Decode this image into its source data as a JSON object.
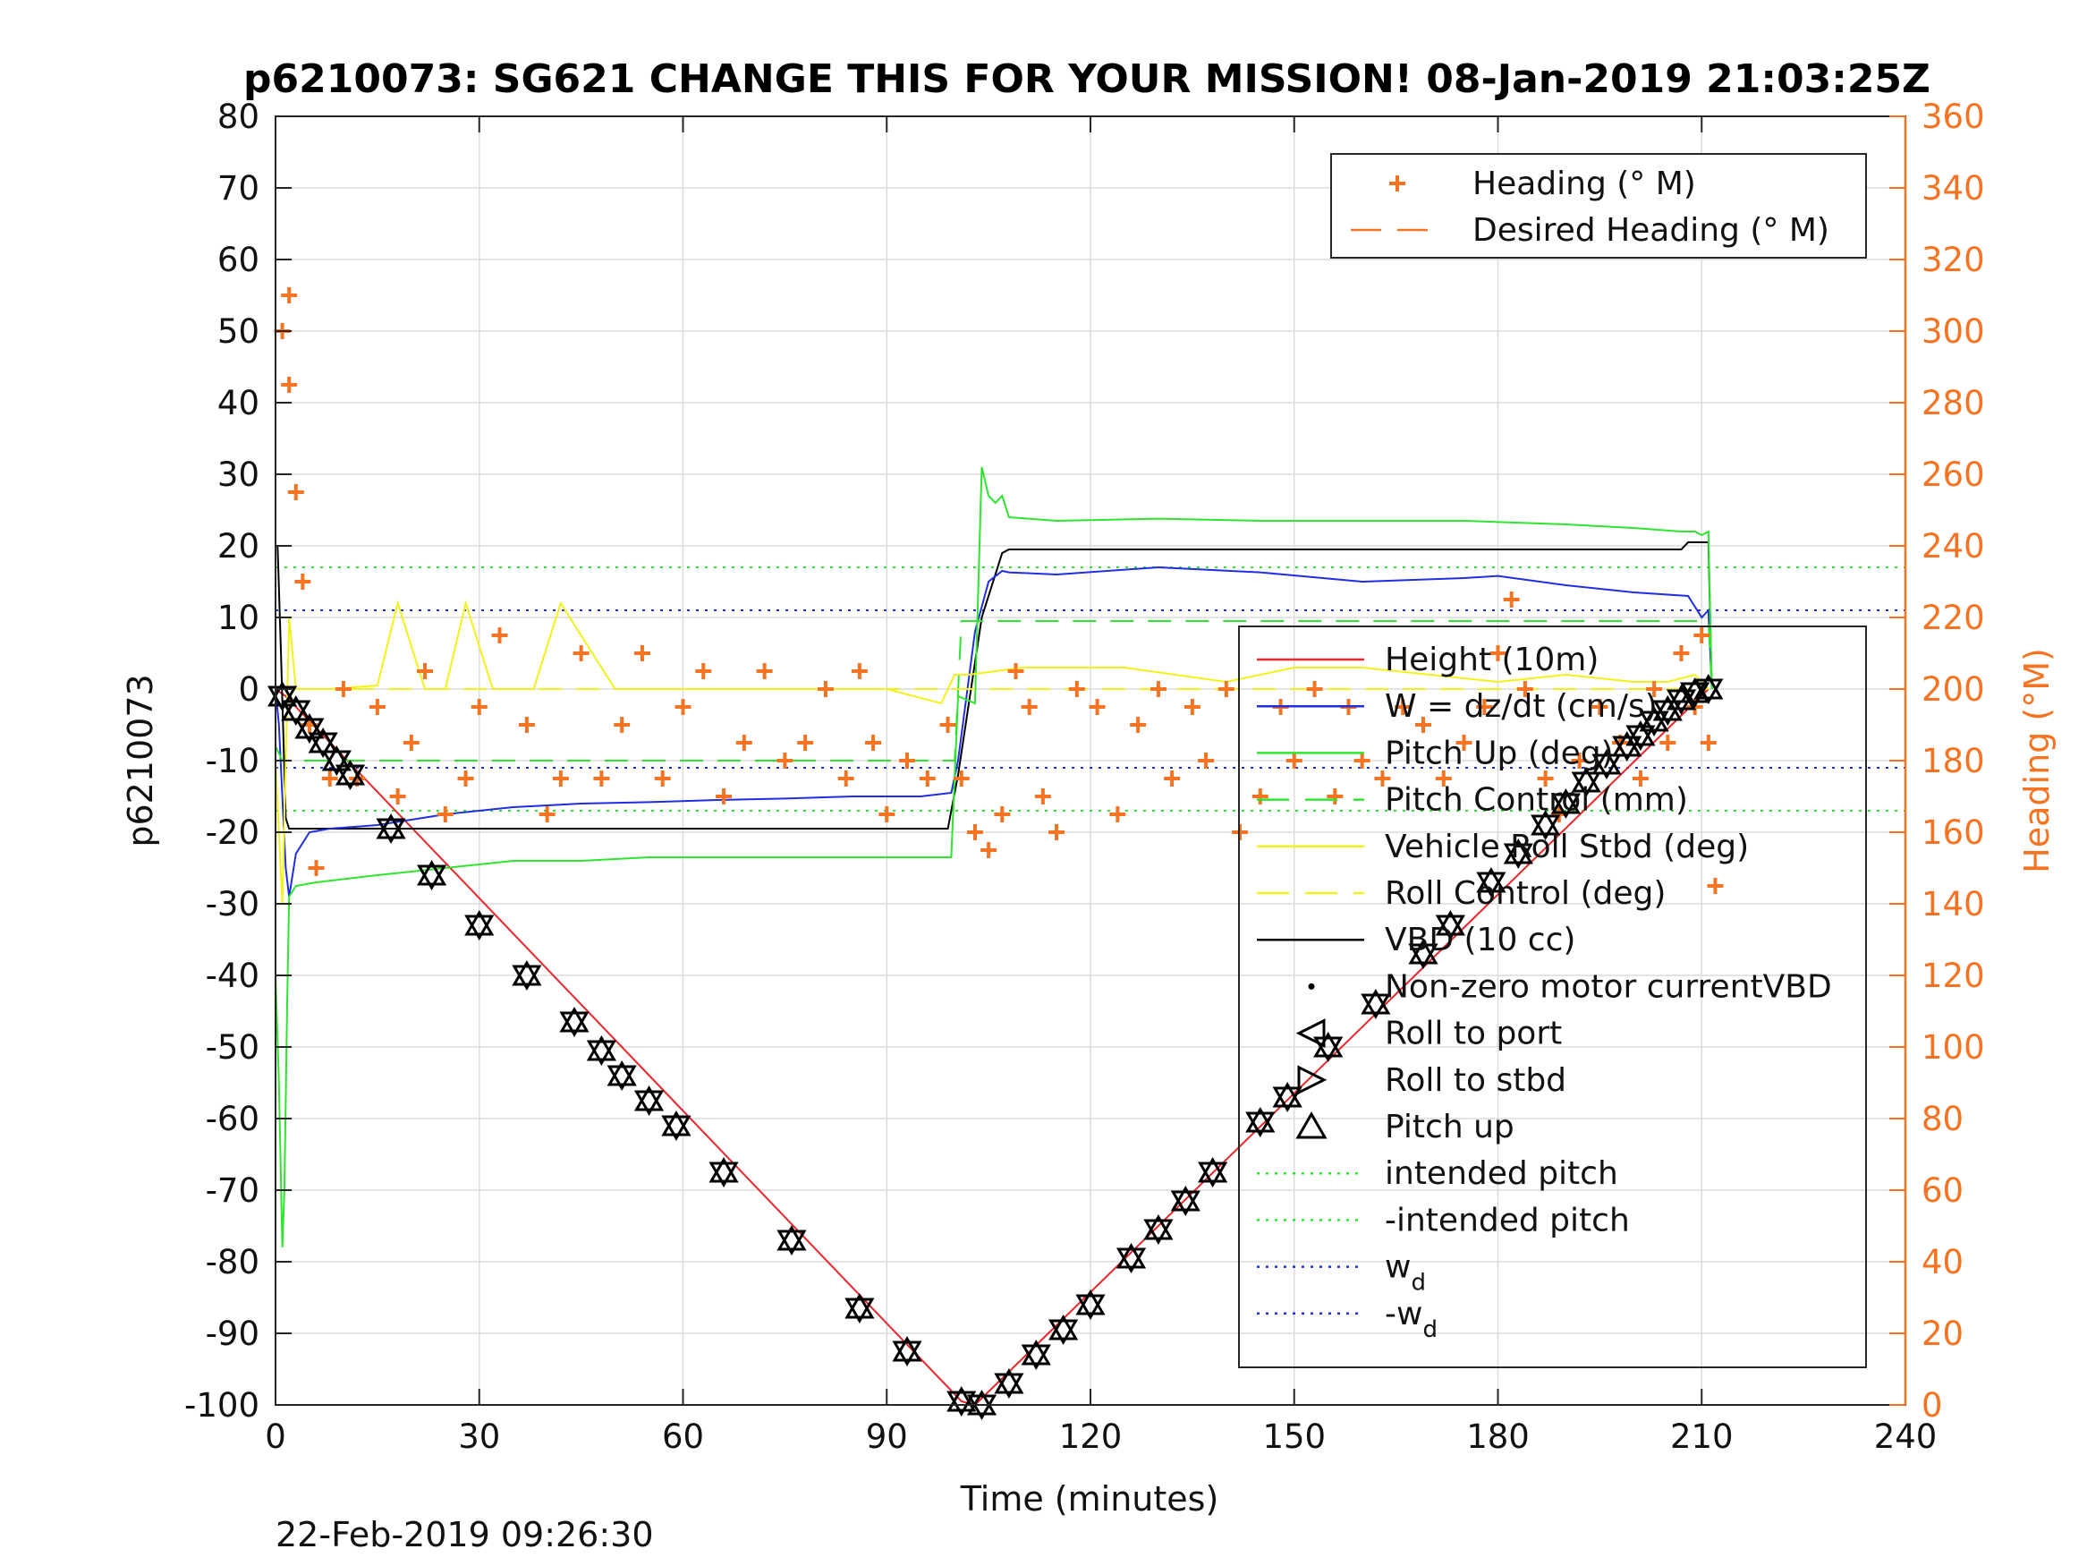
{
  "chart_data": {
    "type": "line",
    "title": "p6210073: SG621 CHANGE THIS FOR YOUR MISSION! 08-Jan-2019 21:03:25Z",
    "xlabel": "Time (minutes)",
    "ylabel": "p6210073",
    "y2label": "Heading (°M)",
    "footer_timestamp": "22-Feb-2019 09:26:30",
    "xlim": [
      0,
      240
    ],
    "ylim": [
      -100,
      80
    ],
    "y2lim": [
      0,
      360
    ],
    "x_ticks": [
      0,
      30,
      60,
      90,
      120,
      150,
      180,
      210,
      240
    ],
    "y_ticks": [
      -100,
      -90,
      -80,
      -70,
      -60,
      -50,
      -40,
      -30,
      -20,
      -10,
      0,
      10,
      20,
      30,
      40,
      50,
      60,
      70,
      80
    ],
    "y2_ticks": [
      0,
      20,
      40,
      60,
      80,
      100,
      120,
      140,
      160,
      180,
      200,
      220,
      240,
      260,
      280,
      300,
      320,
      340,
      360
    ],
    "grid": true,
    "colors": {
      "height": "#e8262b",
      "w": "#1f2ee0",
      "pitch_up": "#2ee62e",
      "pitch_control": "#2ee62e",
      "roll": "#f2f21a",
      "roll_control": "#f2f21a",
      "vbd": "#000000",
      "heading": "#f57321",
      "intended_pitch": "#2ee62e",
      "w_d": "#1f2ee0"
    },
    "legend_heading": [
      {
        "label": "Heading (° M)",
        "marker": "plus"
      },
      {
        "label": "Desired Heading (° M)",
        "marker": "dash"
      }
    ],
    "legend_main": [
      {
        "label": "Height (10m)",
        "style": "solid",
        "color": "#e8262b"
      },
      {
        "label": "W = dz/dt (cm/s)",
        "style": "solid",
        "color": "#1f2ee0"
      },
      {
        "label": "Pitch Up (deg)",
        "style": "solid",
        "color": "#2ee62e"
      },
      {
        "label": "Pitch Control (mm)",
        "style": "dash",
        "color": "#2ee62e"
      },
      {
        "label": "Vehicle Roll Stbd (deg)",
        "style": "solid",
        "color": "#f2f21a"
      },
      {
        "label": "Roll Control (deg)",
        "style": "dash",
        "color": "#f2f21a"
      },
      {
        "label": "VBD (10 cc)",
        "style": "solid",
        "color": "#000000"
      },
      {
        "label": "Non-zero motor currentVBD",
        "style": "dot-marker",
        "color": "#000000"
      },
      {
        "label": "Roll to port",
        "style": "tri-left",
        "color": "#000000"
      },
      {
        "label": "Roll to stbd",
        "style": "tri-right",
        "color": "#000000"
      },
      {
        "label": "Pitch up",
        "style": "tri-up",
        "color": "#000000"
      },
      {
        "label": "intended pitch",
        "style": "dotted",
        "color": "#2ee62e"
      },
      {
        "label": "-intended pitch",
        "style": "dotted",
        "color": "#2ee62e"
      },
      {
        "label": "w",
        "sub": "d",
        "style": "dotted",
        "color": "#1f2ee0"
      },
      {
        "label": "-w",
        "sub": "d",
        "style": "dotted",
        "color": "#1f2ee0"
      }
    ],
    "reference_lines": [
      {
        "name": "intended pitch",
        "y": 17,
        "color": "#2ee62e"
      },
      {
        "name": "-intended pitch",
        "y": -17,
        "color": "#2ee62e"
      },
      {
        "name": "w_d",
        "y": 11,
        "color": "#1f2ee0"
      },
      {
        "name": "-w_d",
        "y": -11,
        "color": "#1f2ee0"
      }
    ],
    "series": [
      {
        "name": "Height (10m)",
        "x": [
          0,
          1.5,
          101,
          103,
          211
        ],
        "y": [
          0,
          -1,
          -99.5,
          -100,
          0
        ]
      },
      {
        "name": "VBD (10 cc)",
        "x": [
          0,
          0.3,
          0.8,
          1.5,
          2,
          99,
          100.5,
          104,
          107,
          108,
          207,
          208,
          211,
          211.5
        ],
        "y": [
          20,
          20,
          5,
          -18,
          -19.5,
          -19.5,
          -12,
          10,
          19,
          19.5,
          19.5,
          20.5,
          20.5,
          0
        ]
      },
      {
        "name": "W = dz/dt (cm/s)",
        "x": [
          0,
          0.5,
          1,
          1.5,
          2,
          3,
          5,
          8,
          15,
          25,
          35,
          45,
          55,
          65,
          75,
          85,
          95,
          99.5,
          100.5,
          103,
          105,
          107,
          108,
          115,
          130,
          145,
          160,
          175,
          180,
          190,
          200,
          208,
          210,
          211,
          211.5
        ],
        "y": [
          0,
          -5,
          -15,
          -25,
          -29,
          -23,
          -20,
          -19.5,
          -19,
          -17.5,
          -16.5,
          -16,
          -15.8,
          -15.5,
          -15.3,
          -15,
          -15,
          -14.5,
          -10,
          8,
          15,
          16.5,
          16.3,
          16,
          17,
          16.3,
          15,
          15.5,
          15.8,
          14.5,
          13.5,
          13,
          10,
          11,
          0
        ]
      },
      {
        "name": "Pitch Up (deg)",
        "x": [
          0,
          0.5,
          1,
          1.3,
          1.7,
          2,
          3,
          6,
          15,
          25,
          35,
          45,
          55,
          65,
          75,
          85,
          95,
          99.5,
          100.5,
          103,
          104,
          105,
          106,
          107,
          108,
          115,
          130,
          145,
          160,
          175,
          190,
          200,
          207,
          209,
          210,
          211,
          211.5
        ],
        "y": [
          -40,
          -55,
          -78,
          -70,
          -45,
          -29,
          -27.5,
          -27,
          -26,
          -25,
          -24,
          -24,
          -23.5,
          -23.5,
          -23.5,
          -23.5,
          -23.5,
          -23.5,
          -1,
          -2,
          31,
          27,
          26,
          27,
          24,
          23.5,
          23.8,
          23.5,
          23.5,
          23.5,
          23,
          22.5,
          22,
          22,
          21.5,
          22,
          0
        ]
      },
      {
        "name": "Pitch Control (mm)",
        "x": [
          0,
          1,
          2,
          100,
          101,
          211,
          211.5
        ],
        "y": [
          -8,
          -10,
          -10,
          -10,
          9.5,
          9.5,
          0
        ]
      },
      {
        "name": "Vehicle Roll Stbd (deg)",
        "x": [
          0,
          1,
          2,
          3,
          8,
          15,
          18,
          22,
          25,
          28,
          32,
          38,
          42,
          50,
          60,
          70,
          80,
          90,
          98,
          100,
          102,
          110,
          125,
          140,
          150,
          160,
          170,
          180,
          190,
          200,
          205,
          209,
          211
        ],
        "y": [
          -10,
          -30,
          10,
          0,
          0,
          0.5,
          12,
          0,
          0,
          12,
          0,
          0,
          12,
          0,
          0,
          0,
          0,
          0,
          -2,
          2,
          2,
          3,
          3,
          1,
          3,
          3,
          2,
          1,
          2,
          1,
          1,
          2,
          0
        ]
      },
      {
        "name": "Roll Control (deg)",
        "x": [
          0,
          1,
          211
        ],
        "y": [
          0,
          0,
          0
        ]
      }
    ],
    "heading_samples": [
      {
        "x": 1,
        "y": 300
      },
      {
        "x": 2,
        "y": 285
      },
      {
        "x": 3,
        "y": 255
      },
      {
        "x": 2,
        "y": 310
      },
      {
        "x": 4,
        "y": 230
      },
      {
        "x": 5,
        "y": 190
      },
      {
        "x": 6,
        "y": 150
      },
      {
        "x": 8,
        "y": 175
      },
      {
        "x": 10,
        "y": 200
      },
      {
        "x": 12,
        "y": 175
      },
      {
        "x": 15,
        "y": 195
      },
      {
        "x": 18,
        "y": 170
      },
      {
        "x": 20,
        "y": 185
      },
      {
        "x": 22,
        "y": 205
      },
      {
        "x": 25,
        "y": 165
      },
      {
        "x": 28,
        "y": 175
      },
      {
        "x": 30,
        "y": 195
      },
      {
        "x": 33,
        "y": 215
      },
      {
        "x": 37,
        "y": 190
      },
      {
        "x": 40,
        "y": 165
      },
      {
        "x": 42,
        "y": 175
      },
      {
        "x": 45,
        "y": 210
      },
      {
        "x": 48,
        "y": 175
      },
      {
        "x": 51,
        "y": 190
      },
      {
        "x": 54,
        "y": 210
      },
      {
        "x": 57,
        "y": 175
      },
      {
        "x": 60,
        "y": 195
      },
      {
        "x": 63,
        "y": 205
      },
      {
        "x": 66,
        "y": 170
      },
      {
        "x": 69,
        "y": 185
      },
      {
        "x": 72,
        "y": 205
      },
      {
        "x": 75,
        "y": 180
      },
      {
        "x": 78,
        "y": 185
      },
      {
        "x": 81,
        "y": 200
      },
      {
        "x": 84,
        "y": 175
      },
      {
        "x": 86,
        "y": 205
      },
      {
        "x": 88,
        "y": 185
      },
      {
        "x": 90,
        "y": 165
      },
      {
        "x": 93,
        "y": 180
      },
      {
        "x": 96,
        "y": 175
      },
      {
        "x": 99,
        "y": 190
      },
      {
        "x": 101,
        "y": 175
      },
      {
        "x": 103,
        "y": 160
      },
      {
        "x": 105,
        "y": 155
      },
      {
        "x": 107,
        "y": 165
      },
      {
        "x": 109,
        "y": 205
      },
      {
        "x": 111,
        "y": 195
      },
      {
        "x": 113,
        "y": 170
      },
      {
        "x": 115,
        "y": 160
      },
      {
        "x": 118,
        "y": 200
      },
      {
        "x": 121,
        "y": 195
      },
      {
        "x": 124,
        "y": 165
      },
      {
        "x": 127,
        "y": 190
      },
      {
        "x": 130,
        "y": 200
      },
      {
        "x": 132,
        "y": 175
      },
      {
        "x": 135,
        "y": 195
      },
      {
        "x": 137,
        "y": 180
      },
      {
        "x": 140,
        "y": 200
      },
      {
        "x": 142,
        "y": 160
      },
      {
        "x": 145,
        "y": 170
      },
      {
        "x": 148,
        "y": 195
      },
      {
        "x": 150,
        "y": 180
      },
      {
        "x": 153,
        "y": 200
      },
      {
        "x": 156,
        "y": 170
      },
      {
        "x": 158,
        "y": 195
      },
      {
        "x": 160,
        "y": 180
      },
      {
        "x": 163,
        "y": 175
      },
      {
        "x": 166,
        "y": 195
      },
      {
        "x": 169,
        "y": 190
      },
      {
        "x": 172,
        "y": 175
      },
      {
        "x": 175,
        "y": 185
      },
      {
        "x": 178,
        "y": 195
      },
      {
        "x": 180,
        "y": 210
      },
      {
        "x": 182,
        "y": 225
      },
      {
        "x": 184,
        "y": 200
      },
      {
        "x": 187,
        "y": 175
      },
      {
        "x": 189,
        "y": 165
      },
      {
        "x": 192,
        "y": 180
      },
      {
        "x": 195,
        "y": 195
      },
      {
        "x": 198,
        "y": 185
      },
      {
        "x": 201,
        "y": 175
      },
      {
        "x": 203,
        "y": 200
      },
      {
        "x": 205,
        "y": 185
      },
      {
        "x": 207,
        "y": 210
      },
      {
        "x": 209,
        "y": 195
      },
      {
        "x": 210,
        "y": 215
      },
      {
        "x": 211,
        "y": 185
      },
      {
        "x": 212,
        "y": 145
      }
    ],
    "marker_events": [
      {
        "x": 1,
        "y": -1
      },
      {
        "x": 3,
        "y": -3
      },
      {
        "x": 5,
        "y": -5.5
      },
      {
        "x": 7,
        "y": -7.5
      },
      {
        "x": 9,
        "y": -10
      },
      {
        "x": 11,
        "y": -12
      },
      {
        "x": 17,
        "y": -19.5
      },
      {
        "x": 23,
        "y": -26
      },
      {
        "x": 30,
        "y": -33
      },
      {
        "x": 37,
        "y": -40
      },
      {
        "x": 44,
        "y": -46.5
      },
      {
        "x": 48,
        "y": -50.5
      },
      {
        "x": 51,
        "y": -54
      },
      {
        "x": 55,
        "y": -57.5
      },
      {
        "x": 59,
        "y": -61
      },
      {
        "x": 66,
        "y": -67.5
      },
      {
        "x": 76,
        "y": -77
      },
      {
        "x": 86,
        "y": -86.5
      },
      {
        "x": 93,
        "y": -92.5
      },
      {
        "x": 101,
        "y": -99.5
      },
      {
        "x": 104,
        "y": -100
      },
      {
        "x": 108,
        "y": -97
      },
      {
        "x": 112,
        "y": -93
      },
      {
        "x": 116,
        "y": -89.5
      },
      {
        "x": 120,
        "y": -86
      },
      {
        "x": 126,
        "y": -79.5
      },
      {
        "x": 130,
        "y": -75.5
      },
      {
        "x": 134,
        "y": -71.5
      },
      {
        "x": 138,
        "y": -67.5
      },
      {
        "x": 145,
        "y": -60.5
      },
      {
        "x": 149,
        "y": -57
      },
      {
        "x": 155,
        "y": -50
      },
      {
        "x": 162,
        "y": -44
      },
      {
        "x": 169,
        "y": -37
      },
      {
        "x": 173,
        "y": -33
      },
      {
        "x": 179,
        "y": -27
      },
      {
        "x": 183,
        "y": -23
      },
      {
        "x": 187,
        "y": -19
      },
      {
        "x": 190,
        "y": -16
      },
      {
        "x": 193,
        "y": -13
      },
      {
        "x": 196,
        "y": -10.5
      },
      {
        "x": 199,
        "y": -8
      },
      {
        "x": 201,
        "y": -6.5
      },
      {
        "x": 203,
        "y": -4.5
      },
      {
        "x": 205,
        "y": -3
      },
      {
        "x": 207,
        "y": -1.5
      },
      {
        "x": 209,
        "y": -0.5
      },
      {
        "x": 211,
        "y": 0
      }
    ]
  }
}
